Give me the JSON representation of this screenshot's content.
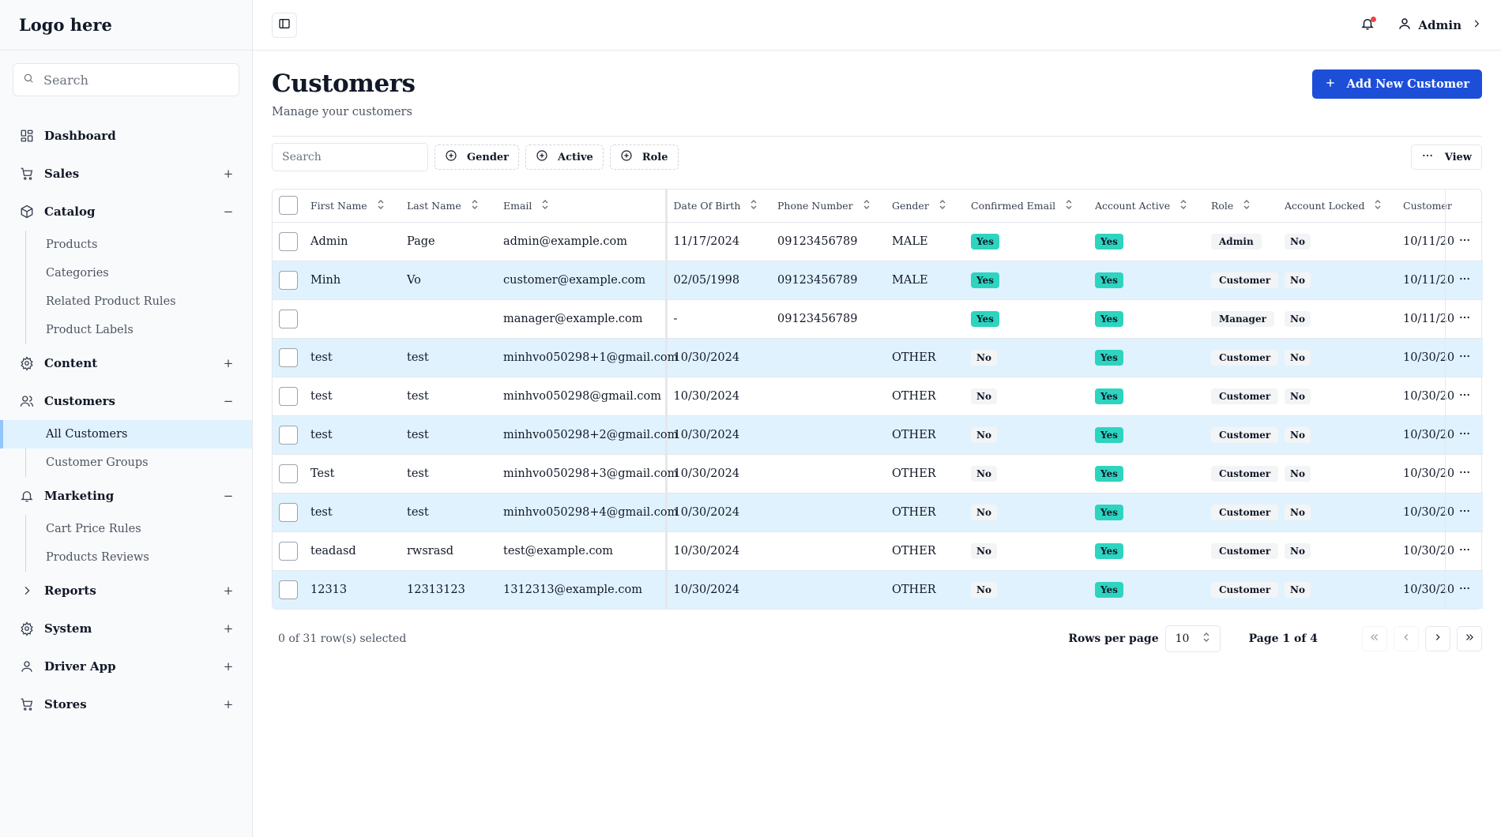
{
  "sidebar": {
    "logo": "Logo here",
    "search_placeholder": "Search",
    "items": [
      {
        "label": "Dashboard",
        "icon": "grid-icon",
        "toggle": ""
      },
      {
        "label": "Sales",
        "icon": "cart-icon",
        "toggle": "+"
      },
      {
        "label": "Catalog",
        "icon": "box-icon",
        "toggle": "−",
        "children": [
          "Products",
          "Categories",
          "Related Product Rules",
          "Product Labels"
        ]
      },
      {
        "label": "Content",
        "icon": "gear-icon",
        "toggle": "+"
      },
      {
        "label": "Customers",
        "icon": "users-icon",
        "toggle": "−",
        "children": [
          "All Customers",
          "Customer Groups"
        ]
      },
      {
        "label": "Marketing",
        "icon": "bell-icon",
        "toggle": "−",
        "children": [
          "Cart Price Rules",
          "Products Reviews"
        ]
      },
      {
        "label": "Reports",
        "icon": "chevron-right-icon",
        "toggle": "+"
      },
      {
        "label": "System",
        "icon": "gear-icon",
        "toggle": "+"
      },
      {
        "label": "Driver App",
        "icon": "user-icon",
        "toggle": "+"
      },
      {
        "label": "Stores",
        "icon": "cart-icon",
        "toggle": "+"
      }
    ]
  },
  "header": {
    "user": "Admin"
  },
  "page": {
    "title": "Customers",
    "subtitle": "Manage your customers",
    "add_button": "Add New Customer"
  },
  "toolbar": {
    "search_placeholder": "Search",
    "filters": [
      "Gender",
      "Active",
      "Role"
    ],
    "view_label": "View"
  },
  "table": {
    "columns": [
      "First Name",
      "Last Name",
      "Email",
      "Date Of Birth",
      "Phone Number",
      "Gender",
      "Confirmed Email",
      "Account Active",
      "Role",
      "Account Locked",
      "Customer"
    ],
    "rows": [
      {
        "first": "Admin",
        "last": "Page",
        "email": "admin@example.com",
        "dob": "11/17/2024",
        "phone": "09123456789",
        "gender": "MALE",
        "confirmed": "Yes",
        "active": "Yes",
        "role": "Admin",
        "locked": "No",
        "created": "10/11/20"
      },
      {
        "first": "Minh",
        "last": "Vo",
        "email": "customer@example.com",
        "dob": "02/05/1998",
        "phone": "09123456789",
        "gender": "MALE",
        "confirmed": "Yes",
        "active": "Yes",
        "role": "Customer",
        "locked": "No",
        "created": "10/11/20"
      },
      {
        "first": "",
        "last": "",
        "email": "manager@example.com",
        "dob": "-",
        "phone": "09123456789",
        "gender": "",
        "confirmed": "Yes",
        "active": "Yes",
        "role": "Manager",
        "locked": "No",
        "created": "10/11/20"
      },
      {
        "first": "test",
        "last": "test",
        "email": "minhvo050298+1@gmail.com",
        "dob": "10/30/2024",
        "phone": "",
        "gender": "OTHER",
        "confirmed": "No",
        "active": "Yes",
        "role": "Customer",
        "locked": "No",
        "created": "10/30/20"
      },
      {
        "first": "test",
        "last": "test",
        "email": "minhvo050298@gmail.com",
        "dob": "10/30/2024",
        "phone": "",
        "gender": "OTHER",
        "confirmed": "No",
        "active": "Yes",
        "role": "Customer",
        "locked": "No",
        "created": "10/30/20"
      },
      {
        "first": "test",
        "last": "test",
        "email": "minhvo050298+2@gmail.com",
        "dob": "10/30/2024",
        "phone": "",
        "gender": "OTHER",
        "confirmed": "No",
        "active": "Yes",
        "role": "Customer",
        "locked": "No",
        "created": "10/30/20"
      },
      {
        "first": "Test",
        "last": "test",
        "email": "minhvo050298+3@gmail.com",
        "dob": "10/30/2024",
        "phone": "",
        "gender": "OTHER",
        "confirmed": "No",
        "active": "Yes",
        "role": "Customer",
        "locked": "No",
        "created": "10/30/20"
      },
      {
        "first": "test",
        "last": "test",
        "email": "minhvo050298+4@gmail.com",
        "dob": "10/30/2024",
        "phone": "",
        "gender": "OTHER",
        "confirmed": "No",
        "active": "Yes",
        "role": "Customer",
        "locked": "No",
        "created": "10/30/20"
      },
      {
        "first": "teadasd",
        "last": "rwsrasd",
        "email": "test@example.com",
        "dob": "10/30/2024",
        "phone": "",
        "gender": "OTHER",
        "confirmed": "No",
        "active": "Yes",
        "role": "Customer",
        "locked": "No",
        "created": "10/30/20"
      },
      {
        "first": "12313",
        "last": "12313123",
        "email": "1312313@example.com",
        "dob": "10/30/2024",
        "phone": "",
        "gender": "OTHER",
        "confirmed": "No",
        "active": "Yes",
        "role": "Customer",
        "locked": "No",
        "created": "10/30/20"
      }
    ]
  },
  "footer": {
    "selected": "0 of 31 row(s) selected",
    "rows_per_page_label": "Rows per page",
    "rows_per_page": "10",
    "page_of": "Page 1 of 4"
  },
  "colors": {
    "accent": "#1d4ed8",
    "yes_badge": "#2dd4bf",
    "row_highlight": "#e0f2fe",
    "notification_dot": "#ef4444"
  }
}
